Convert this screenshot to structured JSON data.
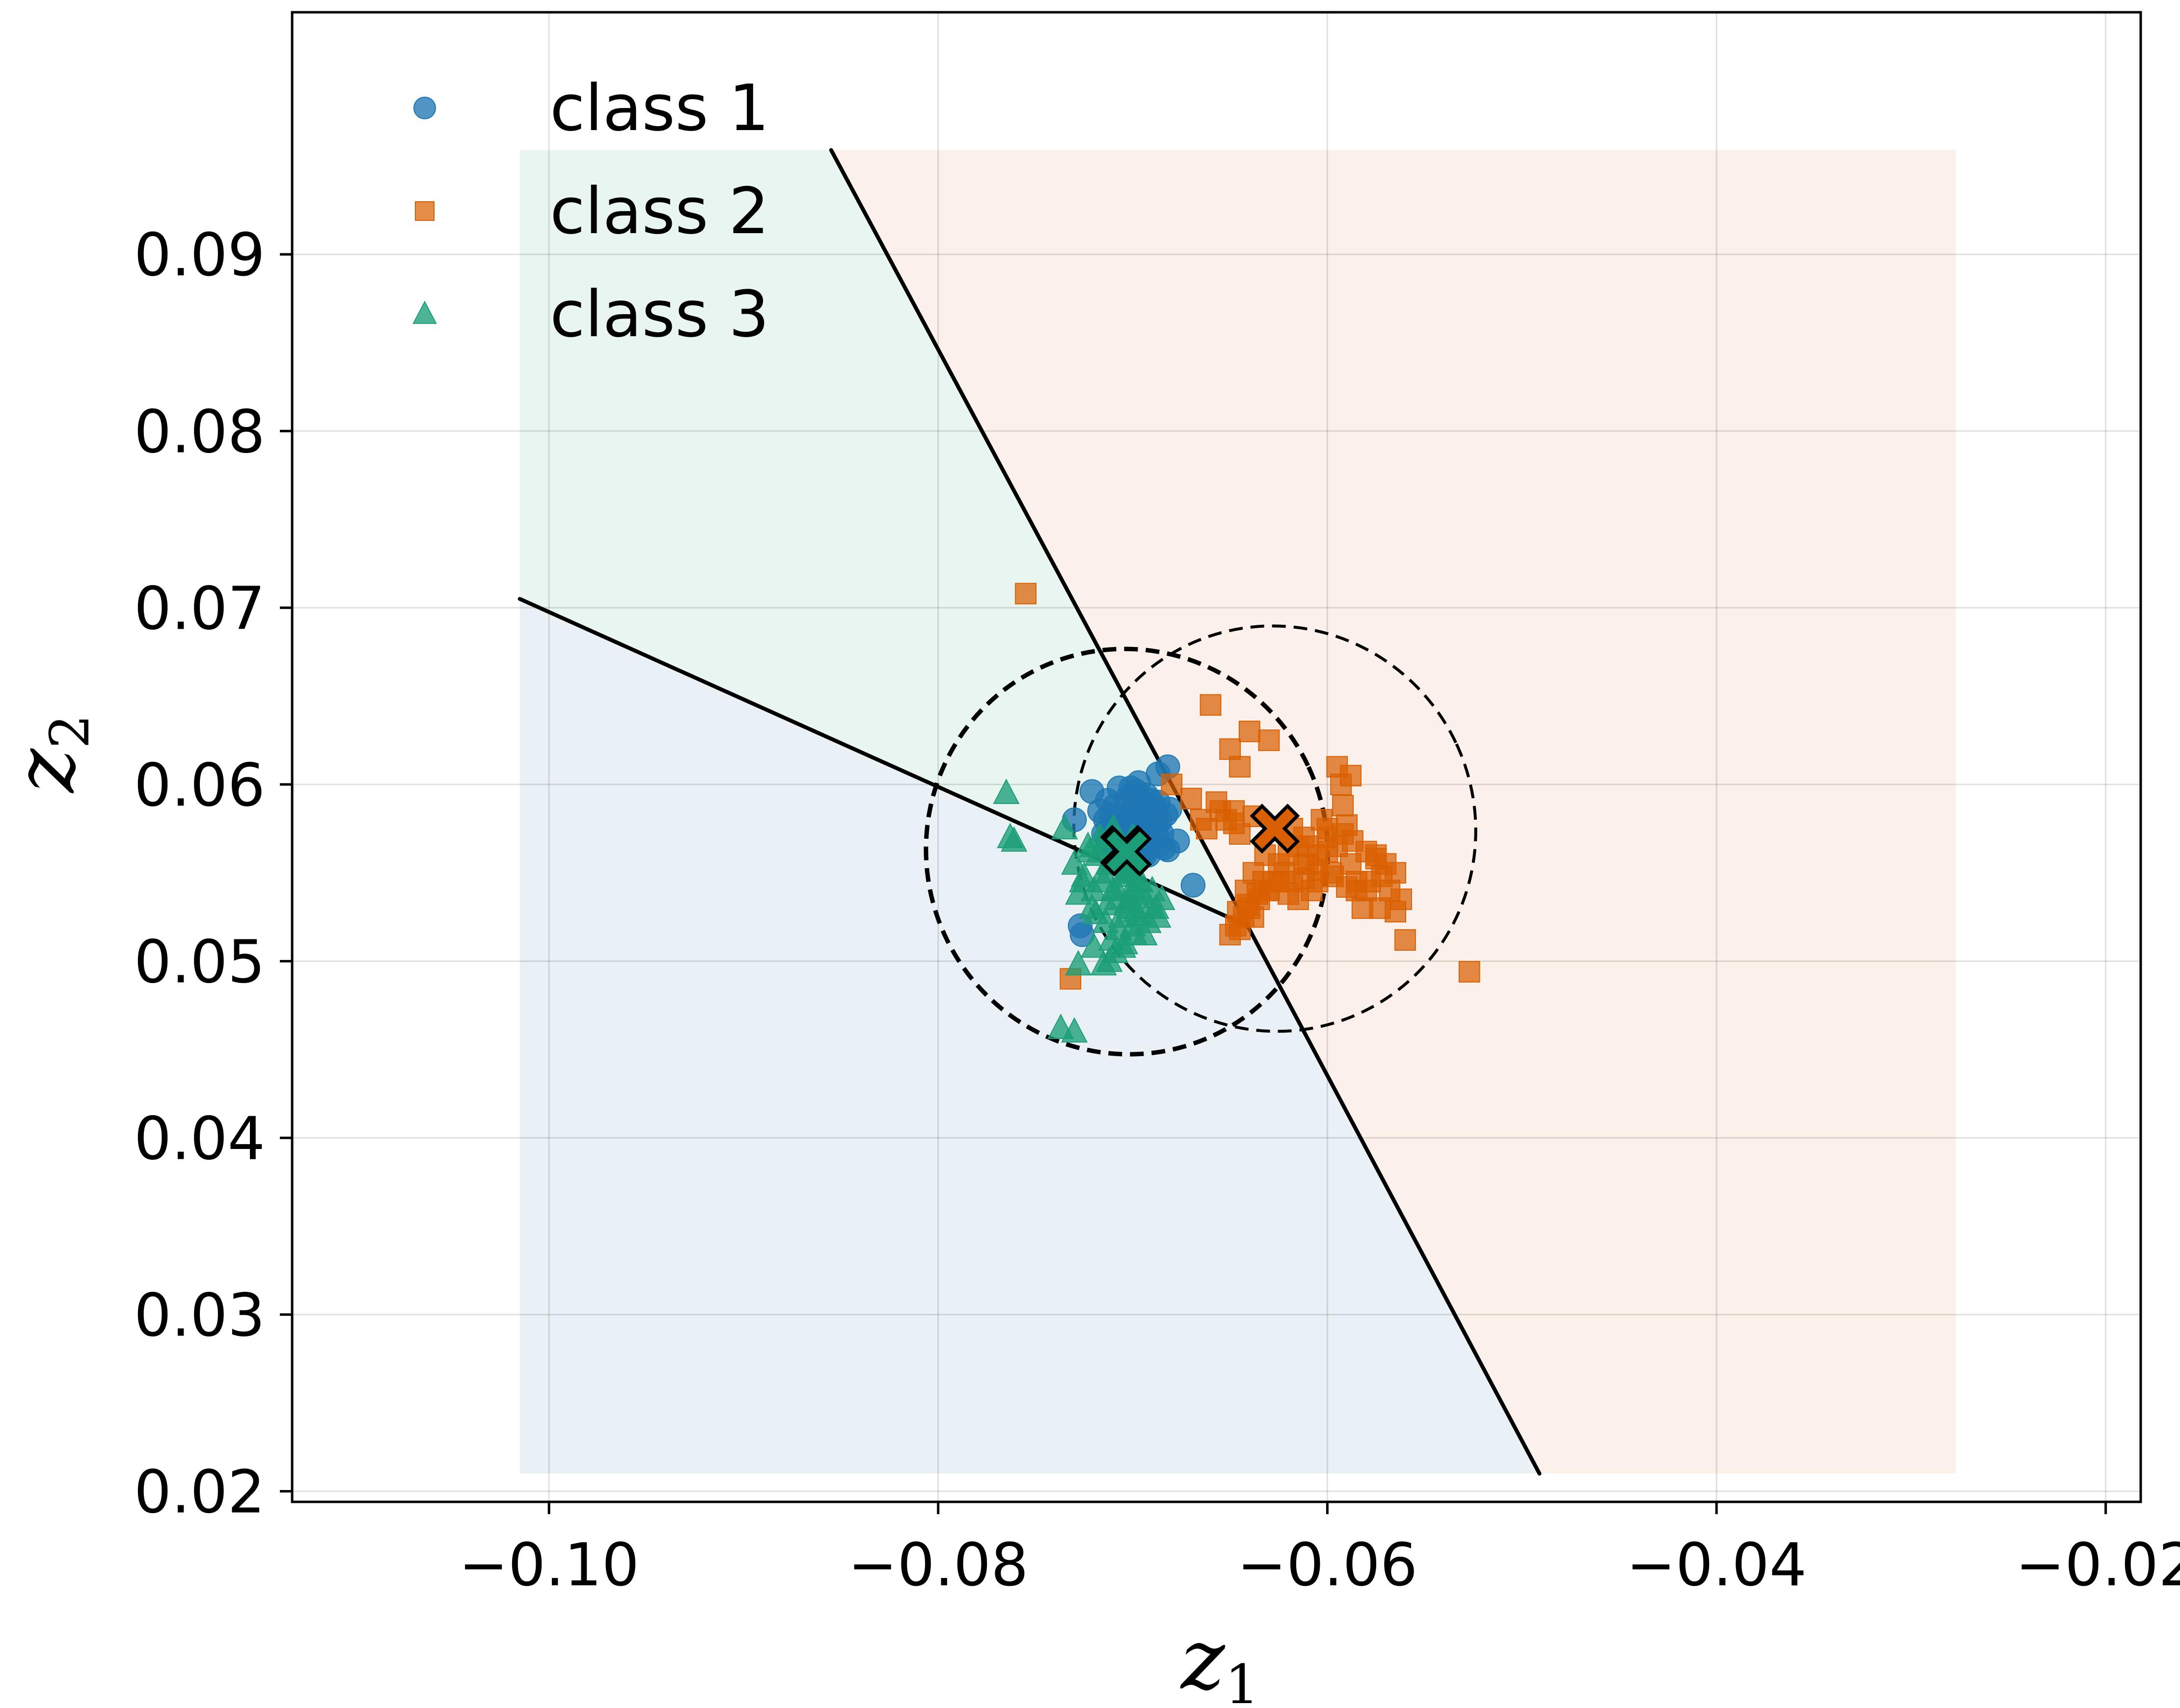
{
  "chart_data": {
    "type": "scatter",
    "title": "",
    "xlabel": {
      "main": "z",
      "sub": "1"
    },
    "ylabel": {
      "main": "z",
      "sub": "2"
    },
    "xlim": [
      -0.1132,
      -0.0182
    ],
    "ylim": [
      0.0194,
      0.1037
    ],
    "xticks": [
      -0.1,
      -0.08,
      -0.06,
      -0.04,
      -0.02
    ],
    "xtick_labels": [
      "−0.10",
      "−0.08",
      "−0.06",
      "−0.04",
      "−0.02"
    ],
    "yticks": [
      0.02,
      0.03,
      0.04,
      0.05,
      0.06,
      0.07,
      0.08,
      0.09
    ],
    "ytick_labels": [
      "0.02",
      "0.03",
      "0.04",
      "0.05",
      "0.06",
      "0.07",
      "0.08",
      "0.09"
    ],
    "grid": true,
    "legend_position": "top-left",
    "region_extent": {
      "x": [
        -0.1015,
        -0.0277
      ],
      "y": [
        0.021,
        0.0959
      ]
    },
    "regions": [
      {
        "class": "class 1",
        "color": "#e9f1f6",
        "polygon": [
          [
            -0.1015,
            0.0705
          ],
          [
            -0.0641,
            0.052
          ],
          [
            -0.0491,
            0.021
          ],
          [
            -0.1015,
            0.021
          ]
        ]
      },
      {
        "class": "class 2",
        "color": "#fbf1ea",
        "polygon": [
          [
            -0.0855,
            0.0959
          ],
          [
            -0.0277,
            0.0959
          ],
          [
            -0.0277,
            0.021
          ],
          [
            -0.0491,
            0.021
          ],
          [
            -0.0641,
            0.052
          ]
        ]
      },
      {
        "class": "class 3",
        "color": "#e8f5f1",
        "polygon": [
          [
            -0.1015,
            0.0959
          ],
          [
            -0.0855,
            0.0959
          ],
          [
            -0.0641,
            0.052
          ],
          [
            -0.1015,
            0.0705
          ]
        ]
      }
    ],
    "boundaries": [
      [
        [
          -0.1015,
          0.0705
        ],
        [
          -0.0641,
          0.052
        ]
      ],
      [
        [
          -0.0855,
          0.0959
        ],
        [
          -0.0641,
          0.052
        ]
      ],
      [
        [
          -0.0641,
          0.052
        ],
        [
          -0.0491,
          0.021
        ]
      ]
    ],
    "ellipses": [
      {
        "class": "class 3",
        "cx": -0.0703,
        "cy": 0.0562,
        "rx": 0.0103,
        "ry": 0.0115,
        "rotation_deg": -25,
        "stroke_width": 9
      },
      {
        "class": "class 2",
        "cx": -0.0627,
        "cy": 0.0575,
        "rx": 0.0103,
        "ry": 0.0115,
        "rotation_deg": -25,
        "stroke_width": 6
      }
    ],
    "series": [
      {
        "name": "class 1",
        "marker": "circle",
        "color": "#1f77b4",
        "x": [
          -0.0705,
          -0.0698,
          -0.0712,
          -0.0692,
          -0.0701,
          -0.0688,
          -0.0709,
          -0.0696,
          -0.0703,
          -0.0685,
          -0.0714,
          -0.0694,
          -0.07,
          -0.0691,
          -0.0707,
          -0.0683,
          -0.0697,
          -0.071,
          -0.0689,
          -0.0702,
          -0.0695,
          -0.0686,
          -0.0711,
          -0.0699,
          -0.0693,
          -0.0704,
          -0.0687,
          -0.0708,
          -0.069,
          -0.0697,
          -0.0681,
          -0.0713,
          -0.07,
          -0.0694,
          -0.0706,
          -0.0688,
          -0.0702,
          -0.0696,
          -0.0691,
          -0.0709,
          -0.0684,
          -0.0703,
          -0.0698,
          -0.0715,
          -0.0692,
          -0.0688,
          -0.0705,
          -0.07,
          -0.0694,
          -0.071,
          -0.0686,
          -0.0701,
          -0.0697,
          -0.0693,
          -0.0708,
          -0.073,
          -0.0717,
          -0.0682,
          -0.0687,
          -0.0721,
          -0.0727,
          -0.0726,
          -0.0669,
          -0.0707,
          -0.0713,
          -0.0682,
          -0.0677,
          -0.0699,
          -0.0704,
          -0.0692
        ],
        "y": [
          0.0582,
          0.059,
          0.0575,
          0.0585,
          0.057,
          0.0578,
          0.0588,
          0.0565,
          0.0592,
          0.0572,
          0.058,
          0.056,
          0.0586,
          0.0574,
          0.0568,
          0.0583,
          0.0577,
          0.0562,
          0.0588,
          0.0579,
          0.0571,
          0.0566,
          0.0583,
          0.0587,
          0.0563,
          0.0574,
          0.059,
          0.057,
          0.058,
          0.0558,
          0.0586,
          0.0567,
          0.0594,
          0.0576,
          0.0561,
          0.0573,
          0.0584,
          0.0569,
          0.0591,
          0.0578,
          0.0564,
          0.0581,
          0.0596,
          0.0572,
          0.0566,
          0.0585,
          0.0577,
          0.0571,
          0.0589,
          0.0568,
          0.0579,
          0.0598,
          0.0601,
          0.0594,
          0.0574,
          0.058,
          0.0585,
          0.061,
          0.0606,
          0.0596,
          0.052,
          0.0515,
          0.0543,
          0.0598,
          0.0591,
          0.0563,
          0.0568,
          0.0555,
          0.0552,
          0.056
        ]
      },
      {
        "name": "class 2",
        "marker": "square",
        "color": "#d95f02",
        "x": [
          -0.0755,
          -0.066,
          -0.064,
          -0.063,
          -0.065,
          -0.0645,
          -0.068,
          -0.067,
          -0.0655,
          -0.0665,
          -0.0662,
          -0.0648,
          -0.0645,
          -0.0638,
          -0.062,
          -0.0612,
          -0.0618,
          -0.0603,
          -0.0592,
          -0.059,
          -0.06,
          -0.061,
          -0.0598,
          -0.0605,
          -0.0585,
          -0.0578,
          -0.0565,
          -0.057,
          -0.0575,
          -0.0568,
          -0.0562,
          -0.0582,
          -0.0588,
          -0.0595,
          -0.0608,
          -0.0615,
          -0.0625,
          -0.0632,
          -0.0628,
          -0.0622,
          -0.061,
          -0.06,
          -0.0592,
          -0.0587,
          -0.058,
          -0.0575,
          -0.0572,
          -0.0585,
          -0.059,
          -0.0597,
          -0.0605,
          -0.0612,
          -0.0618,
          -0.063,
          -0.0635,
          -0.064,
          -0.0643,
          -0.0647,
          -0.065,
          -0.0646,
          -0.0641,
          -0.0636,
          -0.0633,
          -0.0638,
          -0.0642,
          -0.0595,
          -0.0588,
          -0.0593,
          -0.056,
          -0.0527,
          -0.0732,
          -0.062,
          -0.0605,
          -0.058,
          -0.0573,
          -0.0565,
          -0.06,
          -0.0615,
          -0.0625,
          -0.063,
          -0.0638,
          -0.0645,
          -0.0652,
          -0.0657,
          -0.0648,
          -0.0612
        ],
        "y": [
          0.0708,
          0.0645,
          0.063,
          0.0625,
          0.062,
          0.061,
          0.06,
          0.0592,
          0.0585,
          0.058,
          0.0575,
          0.0578,
          0.0572,
          0.0582,
          0.056,
          0.057,
          0.0575,
          0.058,
          0.0588,
          0.0577,
          0.0562,
          0.0555,
          0.055,
          0.0545,
          0.054,
          0.0545,
          0.055,
          0.0555,
          0.056,
          0.054,
          0.0535,
          0.053,
          0.0555,
          0.0565,
          0.054,
          0.0535,
          0.0555,
          0.056,
          0.0545,
          0.055,
          0.0565,
          0.057,
          0.0572,
          0.0568,
          0.0562,
          0.0558,
          0.0548,
          0.0545,
          0.0542,
          0.0548,
          0.0552,
          0.0555,
          0.0545,
          0.054,
          0.0535,
          0.053,
          0.0525,
          0.052,
          0.0515,
          0.0528,
          0.0532,
          0.0538,
          0.0545,
          0.055,
          0.054,
          0.061,
          0.0605,
          0.06,
          0.0512,
          0.0494,
          0.049,
          0.0538,
          0.056,
          0.054,
          0.053,
          0.0528,
          0.0575,
          0.0565,
          0.0545,
          0.054,
          0.0525,
          0.0518,
          0.058,
          0.059,
          0.0585,
          0.0547
        ]
      },
      {
        "name": "class 3",
        "marker": "triangle",
        "color": "#1b9e77",
        "x": [
          -0.0718,
          -0.0712,
          -0.0705,
          -0.07,
          -0.0695,
          -0.0708,
          -0.0702,
          -0.0698,
          -0.0715,
          -0.071,
          -0.0703,
          -0.0697,
          -0.0692,
          -0.0688,
          -0.07,
          -0.0706,
          -0.0713,
          -0.072,
          -0.0725,
          -0.073,
          -0.0722,
          -0.0716,
          -0.0709,
          -0.0703,
          -0.0696,
          -0.069,
          -0.0685,
          -0.0699,
          -0.0707,
          -0.0714,
          -0.0721,
          -0.0728,
          -0.0711,
          -0.0704,
          -0.0694,
          -0.0687,
          -0.0701,
          -0.0717,
          -0.0723,
          -0.0709,
          -0.0712,
          -0.0702,
          -0.0697,
          -0.0706,
          -0.0715,
          -0.0719,
          -0.0726,
          -0.0708,
          -0.0698,
          -0.0691,
          -0.0765,
          -0.0763,
          -0.0761,
          -0.0728,
          -0.0737,
          -0.073,
          -0.0715,
          -0.0705,
          -0.072,
          -0.0735,
          -0.07,
          -0.071
        ],
        "y": [
          0.056,
          0.0555,
          0.0548,
          0.0542,
          0.0538,
          0.0535,
          0.053,
          0.0528,
          0.0545,
          0.054,
          0.0533,
          0.0526,
          0.0522,
          0.053,
          0.052,
          0.0525,
          0.0532,
          0.054,
          0.0548,
          0.0555,
          0.0562,
          0.0565,
          0.0558,
          0.0552,
          0.0545,
          0.054,
          0.0535,
          0.0515,
          0.0518,
          0.0522,
          0.053,
          0.0538,
          0.0512,
          0.051,
          0.0515,
          0.0525,
          0.055,
          0.057,
          0.0565,
          0.0505,
          0.05,
          0.0535,
          0.0545,
          0.0556,
          0.055,
          0.0527,
          0.0545,
          0.054,
          0.0536,
          0.053,
          0.0595,
          0.057,
          0.0568,
          0.0498,
          0.0462,
          0.046,
          0.0498,
          0.0508,
          0.0508,
          0.0575,
          0.057,
          0.0575
        ]
      }
    ],
    "centroids": [
      {
        "class": "class 1",
        "x": -0.0704,
        "y": 0.0563,
        "color": "#1f77b4"
      },
      {
        "class": "class 2",
        "x": -0.0627,
        "y": 0.0575,
        "color": "#d95f02"
      },
      {
        "class": "class 3",
        "x": -0.0703,
        "y": 0.0562,
        "color": "#1b9e77"
      }
    ]
  }
}
